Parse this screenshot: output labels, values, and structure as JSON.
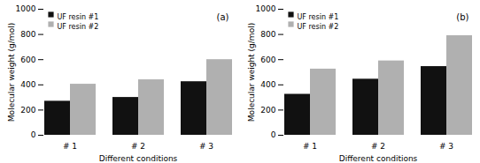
{
  "chart_data": [
    {
      "type": "bar",
      "annotation": "(a)",
      "categories": [
        "# 1",
        "# 2",
        "# 3"
      ],
      "series": [
        {
          "name": "UF resin #1",
          "color": "#111111",
          "values": [
            270,
            300,
            425
          ]
        },
        {
          "name": "UF resin #2",
          "color": "#b0b0b0",
          "values": [
            405,
            440,
            600
          ]
        }
      ],
      "xlabel": "Different conditions",
      "ylabel": "Molecular weight (g/mol)",
      "ylim": [
        0,
        1000
      ],
      "yticks": [
        0,
        200,
        400,
        600,
        800,
        1000
      ],
      "legend": "upper left",
      "grid": false
    },
    {
      "type": "bar",
      "annotation": "(b)",
      "categories": [
        "# 1",
        "# 2",
        "# 3"
      ],
      "series": [
        {
          "name": "UF resin #1",
          "color": "#111111",
          "values": [
            325,
            445,
            545
          ]
        },
        {
          "name": "UF resin #2",
          "color": "#b0b0b0",
          "values": [
            525,
            590,
            790
          ]
        }
      ],
      "xlabel": "Different conditions",
      "ylabel": "Molecular weight (g/mol)",
      "ylim": [
        0,
        1000
      ],
      "yticks": [
        0,
        200,
        400,
        600,
        800,
        1000
      ],
      "legend": "upper left",
      "grid": false
    }
  ]
}
